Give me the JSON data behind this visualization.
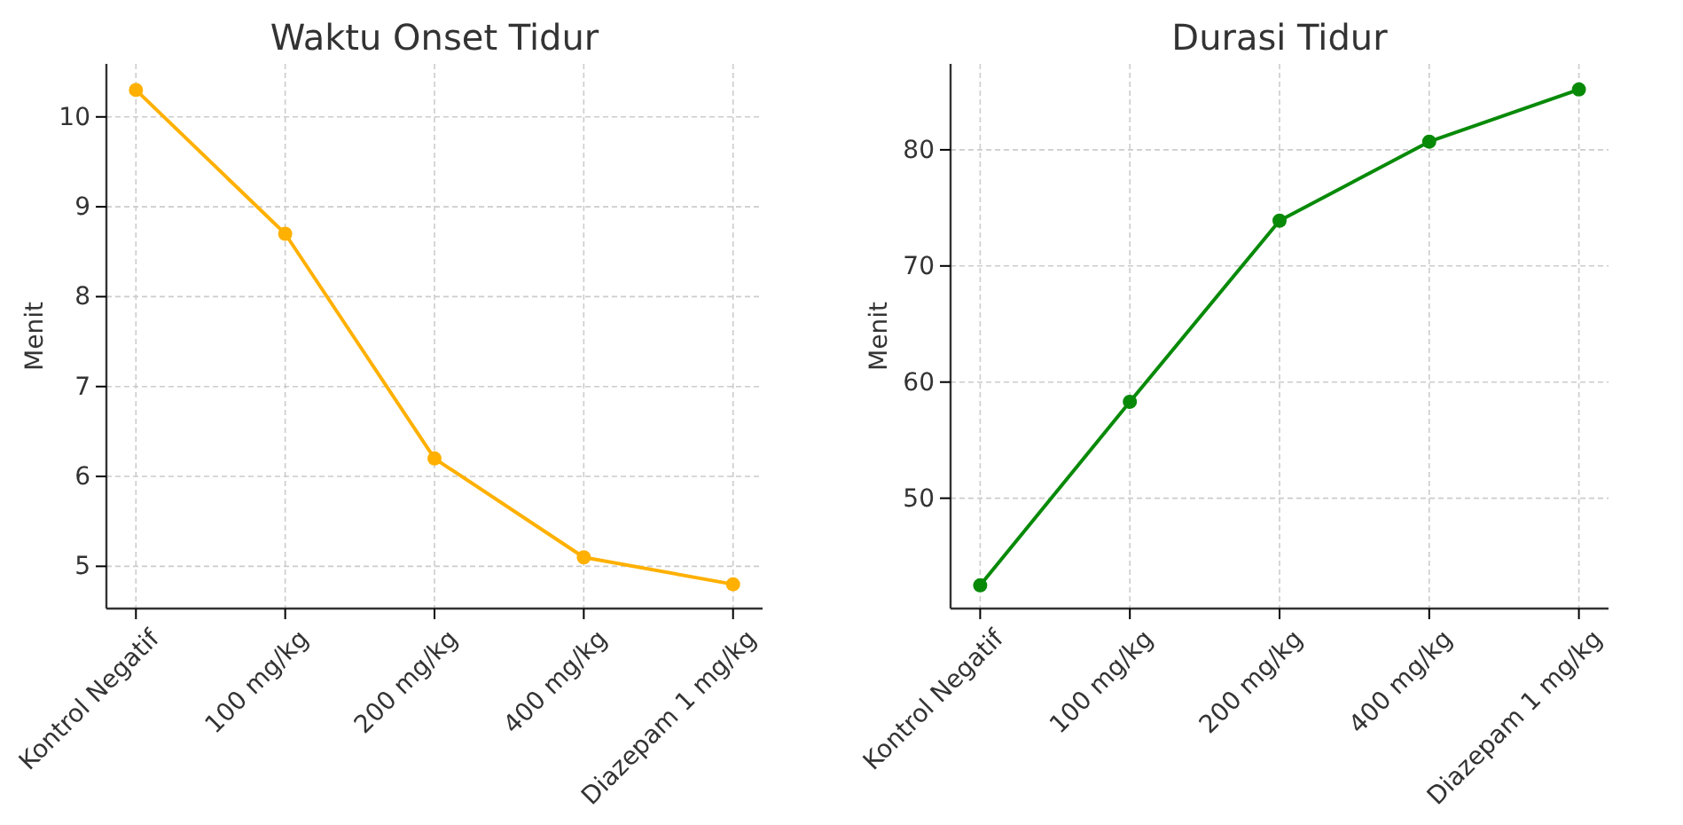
{
  "chart_data": [
    {
      "type": "line",
      "title": "Waktu Onset Tidur",
      "ylabel": "Menit",
      "categories": [
        "Kontrol Negatif",
        "100 mg/kg",
        "200 mg/kg",
        "400 mg/kg",
        "Diazepam 1 mg/kg"
      ],
      "series": [
        {
          "color": "#ffb000",
          "values": [
            10.3,
            8.7,
            6.2,
            5.1,
            4.8
          ]
        }
      ],
      "ylim": [
        4.53,
        10.59
      ],
      "yticks": [
        5,
        6,
        7,
        8,
        9,
        10
      ],
      "grid": true,
      "marker": "circle",
      "line_style": "solid"
    },
    {
      "type": "line",
      "title": "Durasi Tidur",
      "ylabel": "Menit",
      "categories": [
        "Kontrol Negatif",
        "100 mg/kg",
        "200 mg/kg",
        "400 mg/kg",
        "Diazepam 1 mg/kg"
      ],
      "series": [
        {
          "color": "#088a08",
          "values": [
            42.5,
            58.3,
            73.9,
            80.7,
            85.2
          ]
        }
      ],
      "ylim": [
        40.5,
        87.4
      ],
      "yticks": [
        50,
        60,
        70,
        80
      ],
      "grid": true,
      "marker": "circle",
      "line_style": "solid"
    }
  ]
}
